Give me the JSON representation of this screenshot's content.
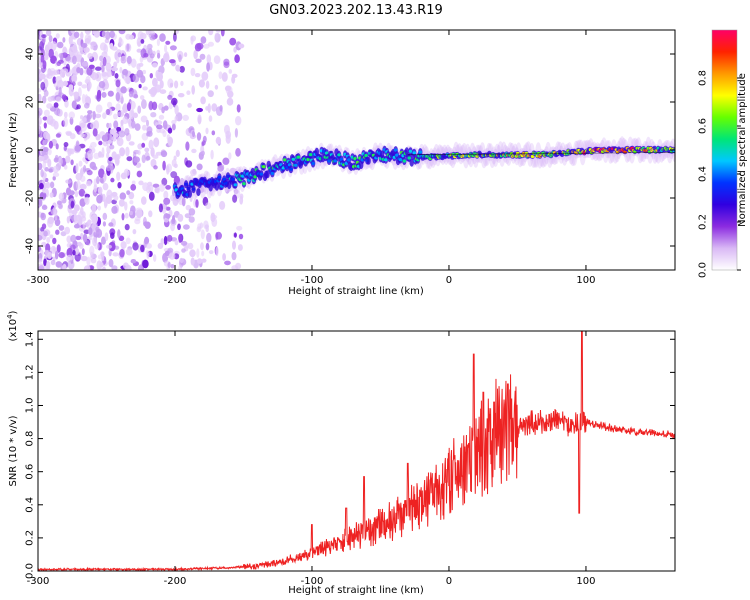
{
  "figure": {
    "title": "GN03.2023.202.13.43.R19"
  },
  "colorbar": {
    "label": "Normalized spectral amplitude",
    "ticks": [
      "0.0",
      "0.2",
      "0.4",
      "0.6",
      "0.8"
    ],
    "tick_values": [
      0.0,
      0.2,
      0.4,
      0.6,
      0.8
    ],
    "range": [
      0,
      1
    ],
    "stops": [
      "#ffffff",
      "#d9b8f5",
      "#8b2be0",
      "#3000e0",
      "#0033ff",
      "#00c8ff",
      "#00e676",
      "#66ff00",
      "#ffff00",
      "#ff9900",
      "#ff2200",
      "#ff0066"
    ]
  },
  "chart_data": [
    {
      "id": "spectrogram",
      "type": "heatmap",
      "title": "",
      "xlabel": "Height of straight line (km)",
      "ylabel": "Frequency (Hz)",
      "xlim": [
        -300,
        165
      ],
      "ylim": [
        -50,
        50
      ],
      "x_ticks": [
        -300,
        -200,
        -100,
        0,
        100
      ],
      "x_tick_labels": [
        "-300",
        "-200",
        "-100",
        "0",
        "100"
      ],
      "y_ticks": [
        -40,
        -20,
        0,
        20,
        40
      ],
      "y_tick_labels": [
        "-40",
        "-20",
        "0",
        "20",
        "40"
      ],
      "noise_region_x": [
        -300,
        -150
      ],
      "signal_track": [
        {
          "x": -200,
          "y": -17,
          "amp": 0.45
        },
        {
          "x": -180,
          "y": -15,
          "amp": 0.35
        },
        {
          "x": -150,
          "y": -12,
          "amp": 0.5
        },
        {
          "x": -130,
          "y": -8,
          "amp": 0.55
        },
        {
          "x": -110,
          "y": -5,
          "amp": 0.5
        },
        {
          "x": -90,
          "y": -2,
          "amp": 0.5
        },
        {
          "x": -70,
          "y": -5,
          "amp": 0.55
        },
        {
          "x": -50,
          "y": -2,
          "amp": 0.5
        },
        {
          "x": -30,
          "y": -3,
          "amp": 0.55
        },
        {
          "x": -10,
          "y": -3,
          "amp": 0.6
        },
        {
          "x": 10,
          "y": -2,
          "amp": 0.65
        },
        {
          "x": 30,
          "y": -2,
          "amp": 0.7
        },
        {
          "x": 50,
          "y": -2,
          "amp": 0.75
        },
        {
          "x": 70,
          "y": -2,
          "amp": 0.75
        },
        {
          "x": 90,
          "y": -1,
          "amp": 0.8
        },
        {
          "x": 110,
          "y": 0,
          "amp": 0.95
        },
        {
          "x": 130,
          "y": 0,
          "amp": 0.9
        },
        {
          "x": 165,
          "y": 0,
          "amp": 0.6
        }
      ]
    },
    {
      "id": "snr",
      "type": "line",
      "title": "",
      "xlabel": "Height of straight line (km)",
      "ylabel": "SNR (10 * v/v)",
      "y_multiplier": "(x10",
      "y_multiplier_exp": "4",
      "y_multiplier_close": ")",
      "xlim": [
        -300,
        165
      ],
      "ylim": [
        0,
        1.45
      ],
      "x_ticks": [
        -300,
        -200,
        -100,
        0,
        100
      ],
      "x_tick_labels": [
        "-300",
        "-200",
        "-100",
        "0",
        "100"
      ],
      "y_ticks": [
        0.0,
        0.2,
        0.4,
        0.6,
        0.8,
        1.0,
        1.2,
        1.4
      ],
      "y_tick_labels": [
        "0.0",
        "0.2",
        "0.4",
        "0.6",
        "0.8",
        "1.0",
        "1.2",
        "1.4"
      ],
      "color": "#ee2222",
      "x": [
        -300,
        -250,
        -200,
        -160,
        -140,
        -120,
        -100,
        -80,
        -60,
        -40,
        -20,
        0,
        20,
        40,
        60,
        80,
        95,
        100,
        110,
        120,
        140,
        165
      ],
      "y": [
        0.01,
        0.01,
        0.01,
        0.02,
        0.03,
        0.06,
        0.11,
        0.17,
        0.24,
        0.31,
        0.42,
        0.55,
        0.72,
        0.86,
        0.9,
        0.9,
        0.88,
        0.9,
        0.88,
        0.86,
        0.84,
        0.82
      ],
      "spikes": [
        {
          "x": -100,
          "y": 0.28
        },
        {
          "x": -75,
          "y": 0.38
        },
        {
          "x": -62,
          "y": 0.57
        },
        {
          "x": -30,
          "y": 0.65
        },
        {
          "x": 18,
          "y": 1.31
        },
        {
          "x": 25,
          "y": 1.08
        },
        {
          "x": 33,
          "y": 1.02
        },
        {
          "x": 43,
          "y": 1.13
        },
        {
          "x": 85,
          "y": 0.92
        },
        {
          "x": 95,
          "y": 0.35
        },
        {
          "x": 97,
          "y": 1.45
        }
      ]
    }
  ]
}
